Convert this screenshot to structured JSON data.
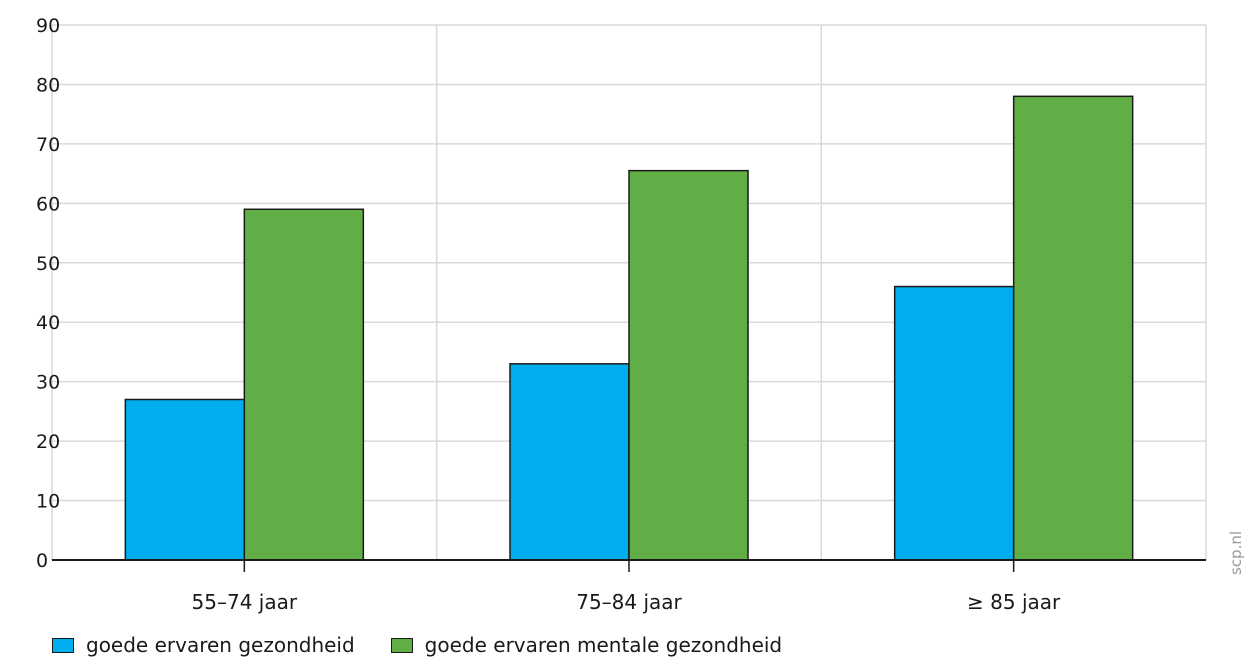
{
  "watermark": "scp.nl",
  "colors": {
    "series_1": "#00aeef",
    "series_2": "#62ae46",
    "gridline": "#d9d9d9",
    "axis": "#1a1a1a"
  },
  "chart_data": {
    "type": "bar",
    "title": "",
    "xlabel": "",
    "ylabel": "",
    "categories": [
      "55–74 jaar",
      "75–84 jaar",
      "≥ 85 jaar"
    ],
    "series": [
      {
        "name": "goede ervaren gezondheid",
        "values": [
          27,
          33,
          46
        ]
      },
      {
        "name": "goede ervaren mentale gezondheid",
        "values": [
          59,
          65.5,
          78
        ]
      }
    ],
    "ylim": [
      0,
      90
    ],
    "yticks": [
      0,
      10,
      20,
      30,
      40,
      50,
      60,
      70,
      80,
      90
    ],
    "grid": true,
    "legend_position": "bottom-left"
  }
}
